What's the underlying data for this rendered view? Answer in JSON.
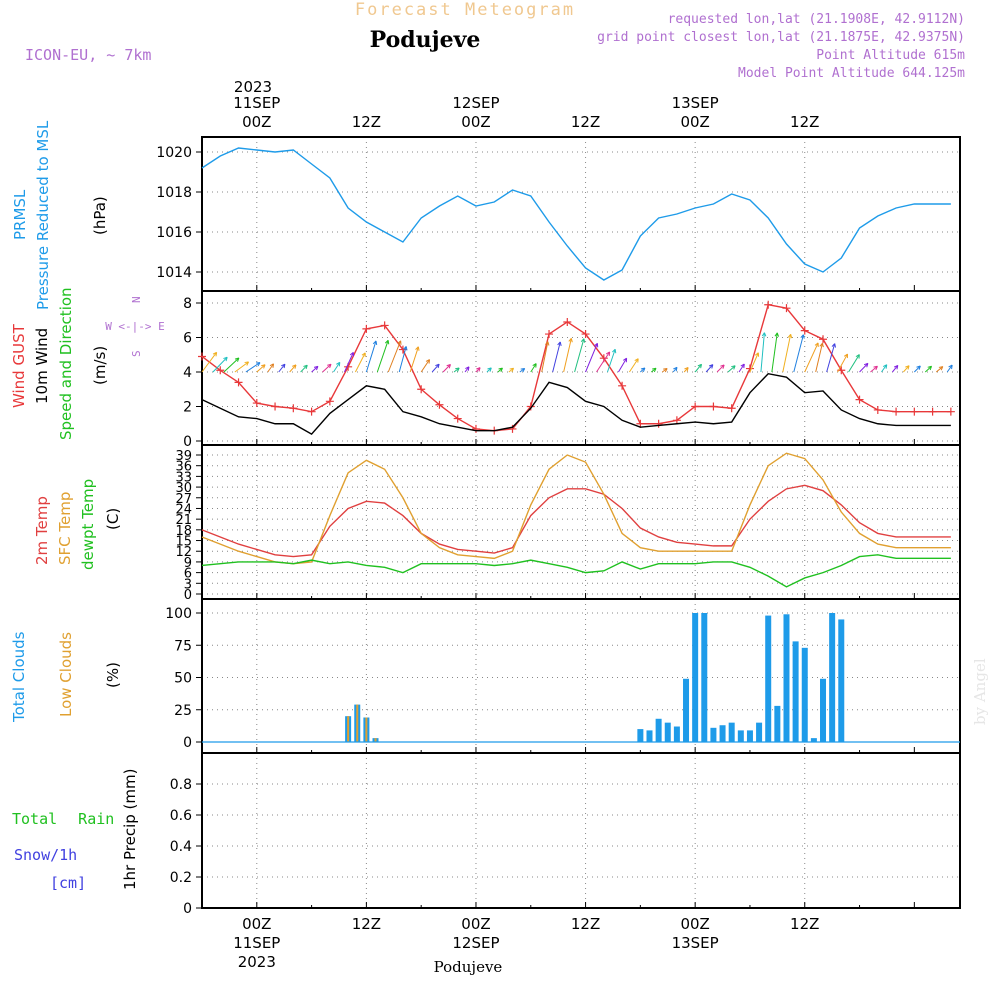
{
  "header": {
    "title": "Forecast Meteogram",
    "location": "Podujeve",
    "model": "ICON-EU, ~ 7km",
    "requested": "requested lon,lat (21.1908E, 42.9112N)",
    "grid_point": "grid point closest lon,lat (21.1875E, 42.9375N)",
    "point_alt": "Point Altitude 615m",
    "model_alt": "Model Point Altitude 644.125m",
    "footer_location": "Podujeve",
    "watermark": "by Angel"
  },
  "time_axis": {
    "top_year": "2023",
    "top_labels": [
      {
        "date": "11SEP",
        "hour": "00Z"
      },
      {
        "date": "",
        "hour": "12Z"
      },
      {
        "date": "12SEP",
        "hour": "00Z"
      },
      {
        "date": "",
        "hour": "12Z"
      },
      {
        "date": "13SEP",
        "hour": "00Z"
      },
      {
        "date": "",
        "hour": "12Z"
      }
    ],
    "bottom_labels": [
      {
        "hour": "00Z",
        "date": "11SEP",
        "year": "2023"
      },
      {
        "hour": "12Z",
        "date": "",
        "year": ""
      },
      {
        "hour": "00Z",
        "date": "12SEP",
        "year": ""
      },
      {
        "hour": "12Z",
        "date": "",
        "year": ""
      },
      {
        "hour": "00Z",
        "date": "13SEP",
        "year": ""
      },
      {
        "hour": "12Z",
        "date": "",
        "year": ""
      }
    ]
  },
  "panels": {
    "pressure": {
      "label1": "PRMSL",
      "label2": "Pressure Reduced to MSL",
      "unit": "(hPa)"
    },
    "wind": {
      "gust": "Wind GUST",
      "wind10": "10m Wind",
      "dir": "Speed and Direction",
      "unit": "(m/s)",
      "compass_n": "N",
      "compass_s": "S",
      "compass_we": "W <-|-> E"
    },
    "temp": {
      "t2m": "2m Temp",
      "sfc": "SFC Temp",
      "dew": "dewpt Temp",
      "unit": "(C)"
    },
    "clouds": {
      "total": "Total Clouds",
      "low": "Low Clouds",
      "unit": "(%)"
    },
    "precip": {
      "rain": "Total Rain",
      "snow": "Snow/1h",
      "snow_unit": "[cm]",
      "unit": "1hr Precip (mm)"
    }
  },
  "colors": {
    "pressure": "#1e9be9",
    "gust": "#e8383a",
    "wind": "#000000",
    "t2m": "#e04040",
    "sfc": "#e0a030",
    "dew": "#20c020",
    "total_clouds": "#1e9be9",
    "low_clouds": "#e0a030",
    "rain": "#20c020",
    "snow": "#4040e0",
    "purple": "#b070d0",
    "title": "#f0c890"
  },
  "chart_data": [
    {
      "type": "line",
      "title": "PRMSL Pressure Reduced to MSL",
      "ylabel": "(hPa)",
      "ylim": [
        1013,
        1021
      ],
      "yticks": [
        1014,
        1016,
        1018,
        1020
      ],
      "x_hours": [
        -6,
        -4,
        -2,
        0,
        2,
        4,
        6,
        8,
        10,
        12,
        14,
        16,
        18,
        20,
        22,
        24,
        26,
        28,
        30,
        32,
        34,
        36,
        38,
        40,
        42,
        44,
        46,
        48,
        50,
        52,
        54,
        56,
        58,
        60,
        62,
        64,
        66,
        68,
        70,
        72,
        74,
        76
      ],
      "series": [
        {
          "name": "PRMSL",
          "values": [
            1019.2,
            1019.8,
            1020.2,
            1020.1,
            1020.0,
            1020.1,
            1019.4,
            1018.7,
            1017.2,
            1016.5,
            1016.0,
            1015.5,
            1016.7,
            1017.3,
            1017.8,
            1017.3,
            1017.5,
            1018.1,
            1017.8,
            1016.5,
            1015.3,
            1014.2,
            1013.6,
            1014.1,
            1015.8,
            1016.7,
            1016.9,
            1017.2,
            1017.4,
            1017.9,
            1017.6,
            1016.7,
            1015.4,
            1014.4,
            1014.0,
            1014.7,
            1016.2,
            1016.8,
            1017.2,
            1017.4,
            1017.4,
            1017.4
          ]
        }
      ]
    },
    {
      "type": "line",
      "title": "Wind GUST / 10m Wind Speed and Direction",
      "ylabel": "(m/s)",
      "ylim": [
        0,
        9
      ],
      "yticks": [
        0,
        2,
        4,
        6,
        8
      ],
      "x_hours": [
        -6,
        -4,
        -2,
        0,
        2,
        4,
        6,
        8,
        10,
        12,
        14,
        16,
        18,
        20,
        22,
        24,
        26,
        28,
        30,
        32,
        34,
        36,
        38,
        40,
        42,
        44,
        46,
        48,
        50,
        52,
        54,
        56,
        58,
        60,
        62,
        64,
        66,
        68,
        70,
        72,
        74,
        76
      ],
      "series": [
        {
          "name": "Wind GUST",
          "values": [
            4.9,
            4.1,
            3.4,
            2.2,
            2.0,
            1.9,
            1.7,
            2.3,
            4.3,
            6.5,
            6.7,
            5.3,
            3.0,
            2.1,
            1.3,
            0.7,
            0.6,
            0.7,
            2.0,
            6.2,
            6.9,
            6.2,
            4.8,
            3.2,
            1.0,
            1.0,
            1.2,
            2.0,
            2.0,
            1.9,
            4.2,
            7.9,
            7.7,
            6.4,
            5.9,
            4.1,
            2.4,
            1.8,
            1.7,
            1.7,
            1.7,
            1.7
          ]
        },
        {
          "name": "10m Wind",
          "values": [
            2.4,
            1.9,
            1.4,
            1.3,
            1.0,
            1.0,
            0.4,
            1.6,
            2.4,
            3.2,
            3.0,
            1.7,
            1.4,
            1.0,
            0.8,
            0.6,
            0.6,
            0.8,
            1.9,
            3.4,
            3.1,
            2.3,
            2.0,
            1.2,
            0.8,
            0.9,
            1.0,
            1.1,
            1.0,
            1.1,
            2.8,
            3.9,
            3.7,
            2.8,
            2.9,
            1.8,
            1.3,
            1.0,
            0.9,
            0.9,
            0.9,
            0.9
          ]
        }
      ],
      "direction_arrows_at_4ms": true
    },
    {
      "type": "line",
      "title": "2m Temp / SFC Temp / dewpt Temp",
      "ylabel": "(C)",
      "ylim": [
        0,
        40
      ],
      "yticks": [
        0,
        3,
        6,
        9,
        12,
        15,
        18,
        21,
        24,
        27,
        30,
        33,
        36,
        39
      ],
      "x_hours": [
        -6,
        -4,
        -2,
        0,
        2,
        4,
        6,
        8,
        10,
        12,
        14,
        16,
        18,
        20,
        22,
        24,
        26,
        28,
        30,
        32,
        34,
        36,
        38,
        40,
        42,
        44,
        46,
        48,
        50,
        52,
        54,
        56,
        58,
        60,
        62,
        64,
        66,
        68,
        70,
        72,
        74,
        76
      ],
      "series": [
        {
          "name": "2m Temp",
          "values": [
            18,
            16,
            14,
            12.5,
            11,
            10.5,
            11,
            19,
            24,
            26,
            25.5,
            22,
            17,
            14,
            12.5,
            12,
            11.5,
            13,
            22,
            27,
            29.5,
            29.5,
            28,
            24,
            18.5,
            16,
            14.5,
            14,
            13.5,
            13.5,
            21,
            26,
            29.5,
            30.5,
            29,
            25,
            20,
            17,
            16,
            16,
            16,
            16
          ]
        },
        {
          "name": "SFC Temp",
          "values": [
            16,
            14,
            12,
            10.5,
            9,
            8.5,
            9,
            22,
            34,
            37.5,
            35,
            27,
            17,
            13,
            11,
            10.5,
            10,
            12,
            25,
            35,
            39,
            37,
            28,
            17,
            13,
            12,
            12,
            12,
            12,
            12,
            25,
            36,
            39.5,
            38,
            32,
            23,
            17,
            14,
            13,
            13,
            13,
            13
          ]
        },
        {
          "name": "dewpt Temp",
          "values": [
            8,
            8.5,
            9,
            9,
            9,
            8.5,
            9.5,
            8.5,
            9,
            8,
            7.5,
            6,
            8.5,
            8.5,
            8.5,
            8.5,
            8,
            8.5,
            9.5,
            8.5,
            7.5,
            6,
            6.5,
            9,
            7,
            8.5,
            8.5,
            8.5,
            9,
            9,
            7.5,
            5,
            2,
            4.5,
            6,
            8,
            10.5,
            11,
            10,
            10,
            10,
            10
          ]
        }
      ]
    },
    {
      "type": "bar",
      "title": "Total Clouds / Low Clouds",
      "ylabel": "(%)",
      "ylim": [
        0,
        100
      ],
      "yticks": [
        0,
        25,
        50,
        75,
        100
      ],
      "x_hours": [
        10,
        11,
        12,
        13,
        14,
        42,
        43,
        44,
        45,
        46,
        47,
        48,
        49,
        50,
        51,
        52,
        53,
        54,
        55,
        56,
        57,
        58,
        59,
        60,
        61,
        62,
        63,
        64,
        65,
        66,
        67,
        68,
        69,
        70,
        71,
        72
      ],
      "series": [
        {
          "name": "Total Clouds",
          "values": [
            20,
            29,
            19,
            3,
            0,
            10,
            9,
            18,
            15,
            12,
            49,
            100,
            100,
            11,
            13,
            15,
            9,
            9,
            15,
            98,
            28,
            99,
            78,
            73,
            3,
            49,
            100,
            95,
            0,
            0,
            0,
            0,
            0,
            0,
            0,
            0
          ]
        },
        {
          "name": "Low Clouds",
          "values": [
            20,
            29,
            19,
            3,
            0,
            0,
            0,
            0,
            0,
            0,
            0,
            0,
            0,
            0,
            0,
            0,
            0,
            0,
            0,
            0,
            0,
            0,
            0,
            0,
            0,
            0,
            0,
            0,
            0,
            0,
            0,
            0,
            0,
            0,
            0,
            0
          ]
        }
      ]
    },
    {
      "type": "bar",
      "title": "1hr Precip",
      "ylabel": "1hr Precip (mm)",
      "ylim": [
        0,
        1
      ],
      "yticks": [
        0,
        0.2,
        0.4,
        0.6,
        0.8
      ],
      "series": [
        {
          "name": "Total Rain",
          "values": []
        },
        {
          "name": "Snow/1h",
          "values": []
        }
      ]
    }
  ]
}
